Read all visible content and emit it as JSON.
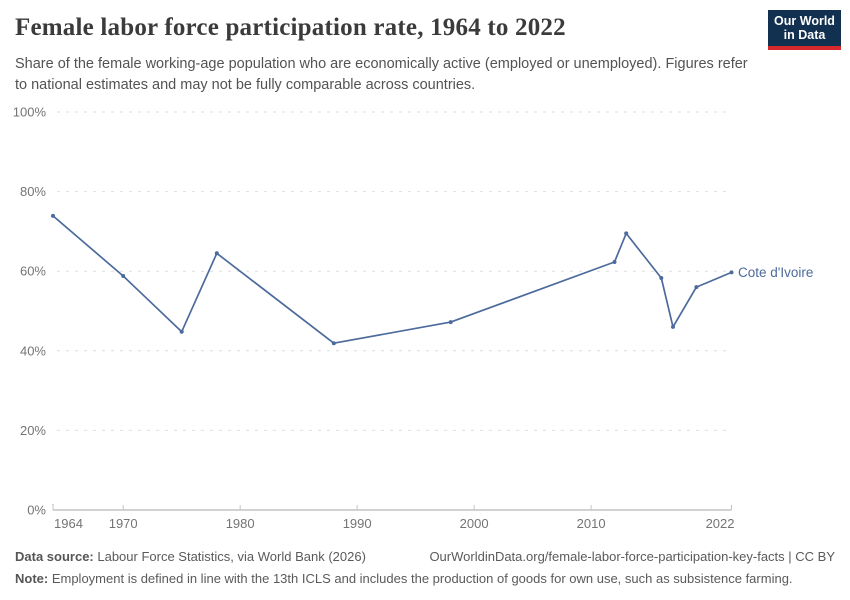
{
  "header": {
    "title": "Female labor force participation rate, 1964 to 2022",
    "subtitle": "Share of the female working-age population who are economically active (employed or unemployed). Figures refer to national estimates and may not be fully comparable across countries.",
    "logo": {
      "line1": "Our World",
      "line2": "in Data",
      "bg_color": "#12304f",
      "bar_color": "#d7282e"
    }
  },
  "chart_data": {
    "type": "line",
    "title": "Female labor force participation rate, 1964 to 2022",
    "xlabel": "",
    "ylabel": "",
    "xlim": [
      1964,
      2022
    ],
    "ylim": [
      0,
      100
    ],
    "x_ticks": [
      1964,
      1970,
      1980,
      1990,
      2000,
      2010,
      2022
    ],
    "y_ticks": [
      0,
      20,
      40,
      60,
      80,
      100
    ],
    "y_tick_suffix": "%",
    "grid": "dashed-horizontal",
    "legend_position": "end-of-line-label",
    "series": [
      {
        "name": "Cote d'Ivoire",
        "color": "#4C6A9C",
        "points": [
          [
            1964,
            73.9
          ],
          [
            1970,
            58.8
          ],
          [
            1975,
            44.8
          ],
          [
            1978,
            64.5
          ],
          [
            1988,
            41.9
          ],
          [
            1998,
            47.2
          ],
          [
            2012,
            62.3
          ],
          [
            2013,
            69.5
          ],
          [
            2016,
            58.3
          ],
          [
            2017,
            46.0
          ],
          [
            2019,
            56.0
          ],
          [
            2022,
            59.7
          ]
        ]
      }
    ]
  },
  "footer": {
    "data_source_label": "Data source:",
    "data_source_text": " Labour Force Statistics, via World Bank (2026)",
    "attribution": "OurWorldinData.org/female-labor-force-participation-key-facts | CC BY",
    "note_label": "Note:",
    "note_text": " Employment is defined in line with the 13th ICLS and includes the production of goods for own use, such as subsistence farming."
  },
  "theme": {
    "grid_color": "#dedede",
    "axis_color": "#a5a5a5",
    "tick_mark_color": "#c3c3c3",
    "tick_label_color": "#747474"
  }
}
